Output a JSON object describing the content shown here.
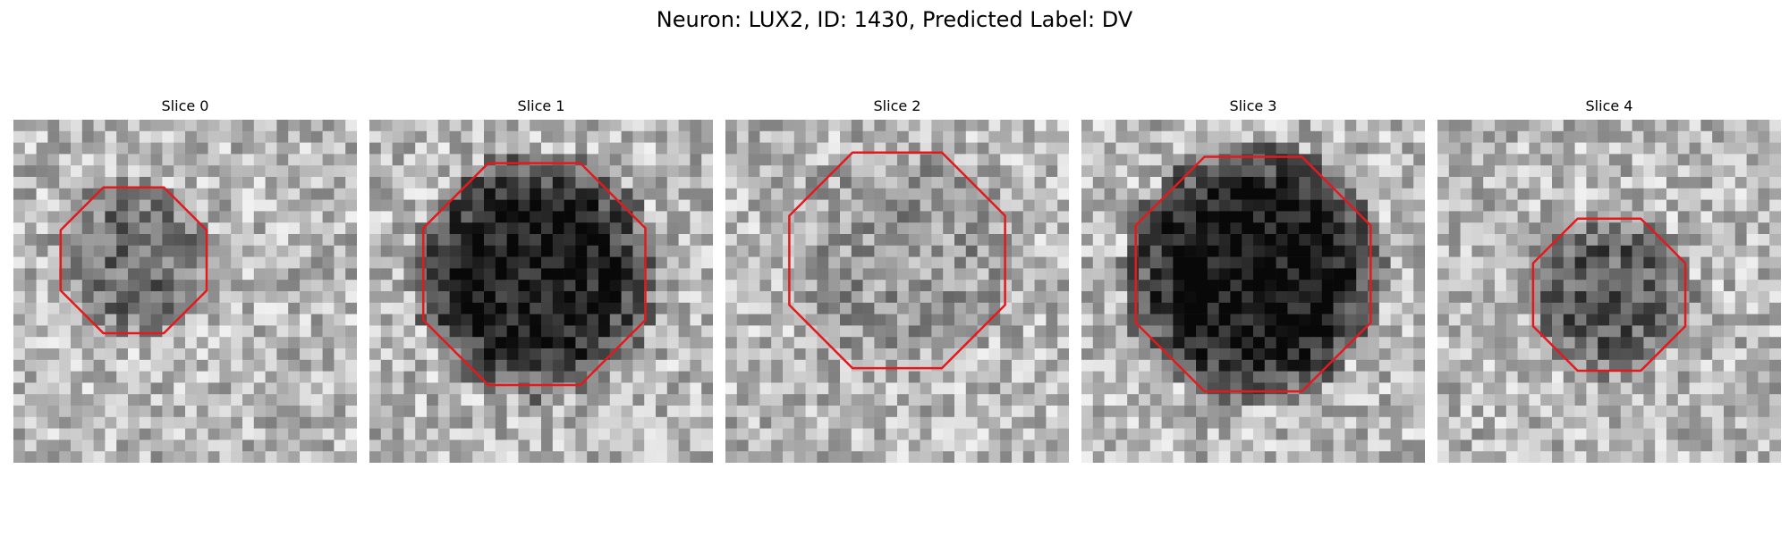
{
  "figure": {
    "title": "Neuron: LUX2, ID: 1430, Predicted Label: DV"
  },
  "colors": {
    "contour": "#e31a1c",
    "background": "#ffffff"
  },
  "panels": [
    {
      "title": "Slice 0",
      "seed": 11,
      "blob_darkness": 0.28,
      "contour_radius": 0.23,
      "contour_center": [
        0.35,
        0.41
      ]
    },
    {
      "title": "Slice 1",
      "seed": 23,
      "blob_darkness": 0.62,
      "contour_radius": 0.35,
      "contour_center": [
        0.48,
        0.45
      ]
    },
    {
      "title": "Slice 2",
      "seed": 37,
      "blob_darkness": 0.12,
      "contour_radius": 0.34,
      "contour_center": [
        0.5,
        0.41
      ]
    },
    {
      "title": "Slice 3",
      "seed": 41,
      "blob_darkness": 0.68,
      "contour_radius": 0.37,
      "contour_center": [
        0.5,
        0.45
      ]
    },
    {
      "title": "Slice 4",
      "seed": 53,
      "blob_darkness": 0.35,
      "contour_radius": 0.24,
      "contour_center": [
        0.5,
        0.51
      ]
    }
  ]
}
